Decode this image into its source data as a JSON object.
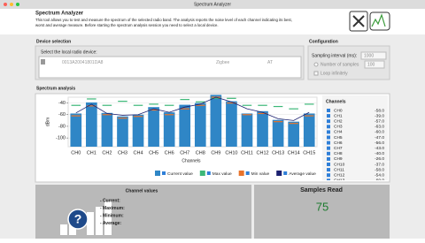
{
  "window_title": "Spectrum Analyzer",
  "header": {
    "title": "Spectrum Analyzer",
    "description_lines": [
      "This tool allows you to test and measure the spectrum of the selected radio band. The analysis reports the noise level of each channel indicating its best,",
      "worst and average measure. Before starting the spectrum analysis session you need to select a local device."
    ]
  },
  "device_selection": {
    "title": "Device selection",
    "prompt": "Select the local radio device:",
    "device": {
      "id": "0013A20041801DA8",
      "protocol": "Zigbee",
      "mode": "AT"
    }
  },
  "configuration": {
    "title": "Configuration",
    "sampling_label": "Sampling interval (ms):",
    "sampling_value": "1000",
    "samples_label": "Number of samples",
    "samples_value": "100",
    "loop_label": "Loop infinitely"
  },
  "spectrum_analysis": {
    "title": "Spectrum analysis",
    "list_title": "Channels"
  },
  "chart_data": {
    "type": "bar",
    "y_label": "dBm",
    "x_label": "Channels",
    "categories": [
      "CH0",
      "CH1",
      "CH2",
      "CH3",
      "CH4",
      "CH5",
      "CH6",
      "CH7",
      "CH8",
      "CH9",
      "CH10",
      "CH11",
      "CH12",
      "CH13",
      "CH14",
      "CH15"
    ],
    "ylim": [
      -115,
      -30
    ],
    "yticks": [
      -40,
      -60,
      -80,
      -100
    ],
    "grid": true,
    "series": [
      {
        "name": "Current value",
        "mark": "bar",
        "color": "#2f86c6",
        "values": [
          -58,
          -39,
          -57,
          -63,
          -60,
          -47,
          -56,
          -43,
          -40,
          -26,
          -37,
          -58,
          -54,
          -69,
          -72,
          -58
        ],
        "value_labels": [
          "-58.0",
          "-39.0",
          "-57.0",
          "-63.0",
          "-60.0",
          "-47.0",
          "-56.0",
          "-43.0",
          "-40.0",
          "-26.0",
          "-37.0",
          "-58.0",
          "-54.0",
          "-69.0",
          "-72.0",
          "-58.0"
        ]
      },
      {
        "name": "Max value",
        "mark": "dash",
        "color": "#3cb878",
        "values": [
          -44,
          -33,
          -44,
          -37,
          -44,
          -42,
          -44,
          -34,
          -38,
          -32,
          -32,
          -44,
          -44,
          -46,
          -50,
          -42
        ]
      },
      {
        "name": "Min value",
        "mark": "dash",
        "color": "#e8742c",
        "values": [
          -62,
          -45,
          -60,
          -66,
          -63,
          -52,
          -60,
          -50,
          -44,
          -30,
          -40,
          -60,
          -58,
          -72,
          -75,
          -62
        ]
      },
      {
        "name": "Average value",
        "mark": "line",
        "color": "#1b2070",
        "values": [
          -57,
          -42,
          -58,
          -61,
          -60,
          -50,
          -56,
          -47,
          -42,
          -30,
          -38,
          -50,
          -56,
          -67,
          -70,
          -56
        ]
      }
    ]
  },
  "channel_values": {
    "title": "Channel values",
    "icon": "?",
    "labels": [
      "- Current:",
      "- Maximum:",
      "- Minimum:",
      "- Average:"
    ]
  },
  "samples": {
    "title": "Samples Read",
    "value": 75
  }
}
